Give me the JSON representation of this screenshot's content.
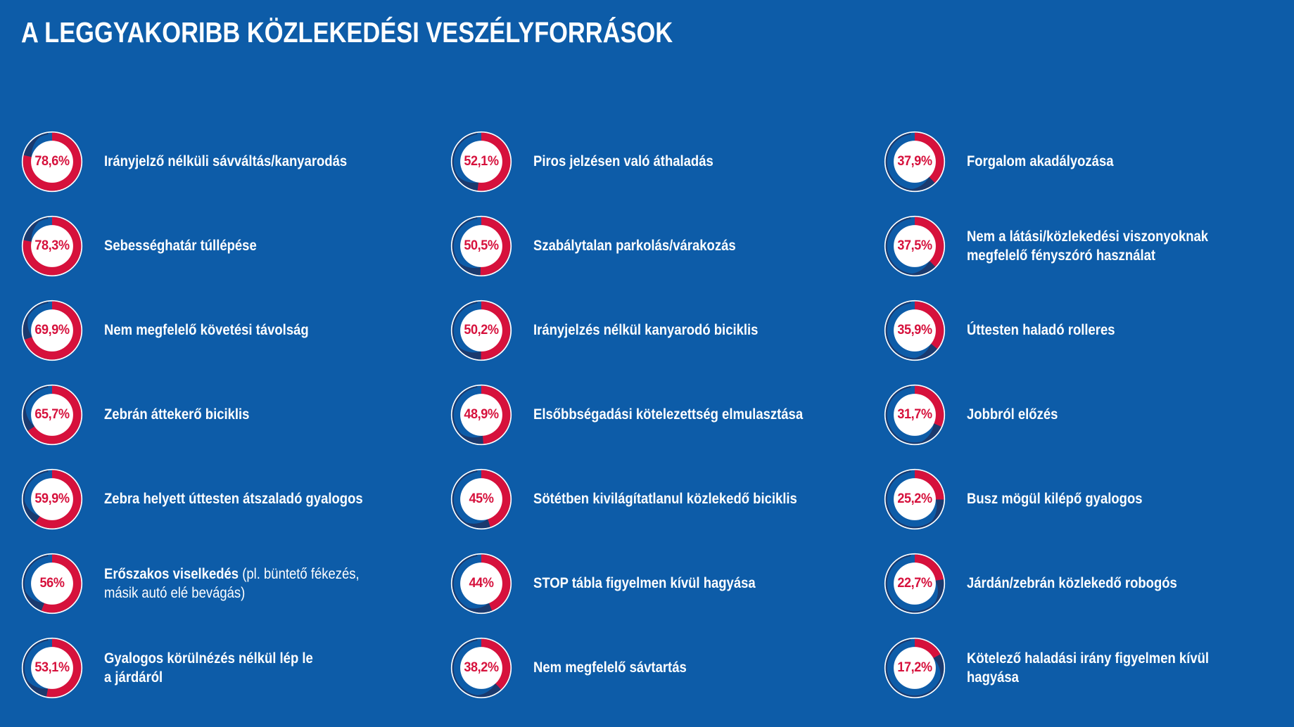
{
  "title": "A LEGGYAKORIBB KÖZLEKEDÉSI VESZÉLYFORRÁSOK",
  "colors": {
    "background": "#0d5ca8",
    "red": "#d6113c",
    "navy": "#1b3a6e",
    "white": "#ffffff"
  },
  "chart_data": {
    "type": "pie",
    "subtype": "donut-grid",
    "title": "A LEGGYAKORIBB KÖZLEKEDÉSI VESZÉLYFORRÁSOK",
    "unit": "%",
    "legend": "red arc = percentage value, arc starts at 12 o'clock clockwise",
    "columns": [
      {
        "items": [
          {
            "value": 78.6,
            "display": "78,6%",
            "label": "Irányjelző nélküli sávváltás/kanyarodás"
          },
          {
            "value": 78.3,
            "display": "78,3%",
            "label": "Sebességhatár túllépése"
          },
          {
            "value": 69.9,
            "display": "69,9%",
            "label": "Nem megfelelő követési távolság"
          },
          {
            "value": 65.7,
            "display": "65,7%",
            "label": "Zebrán áttekerő biciklis"
          },
          {
            "value": 59.9,
            "display": "59,9%",
            "label": "Zebra helyett úttesten átszaladó gyalogos"
          },
          {
            "value": 56,
            "display": "56%",
            "label": "Erőszakos viselkedés",
            "label_regular": " (pl. büntető fékezés,\nmásik autó elé bevágás)"
          },
          {
            "value": 53.1,
            "display": "53,1%",
            "label": "Gyalogos körülnézés nélkül lép le\na járdáról"
          }
        ]
      },
      {
        "items": [
          {
            "value": 52.1,
            "display": "52,1%",
            "label": "Piros jelzésen való áthaladás"
          },
          {
            "value": 50.5,
            "display": "50,5%",
            "label": "Szabálytalan parkolás/várakozás"
          },
          {
            "value": 50.2,
            "display": "50,2%",
            "label": "Irányjelzés nélkül kanyarodó biciklis"
          },
          {
            "value": 48.9,
            "display": "48,9%",
            "label": "Elsőbbségadási kötelezettség elmulasztása"
          },
          {
            "value": 45,
            "display": "45%",
            "label": "Sötétben kivilágítatlanul közlekedő biciklis"
          },
          {
            "value": 44,
            "display": "44%",
            "label": "STOP tábla figyelmen kívül hagyása"
          },
          {
            "value": 38.2,
            "display": "38,2%",
            "label": "Nem megfelelő sávtartás"
          }
        ]
      },
      {
        "items": [
          {
            "value": 37.9,
            "display": "37,9%",
            "label": "Forgalom akadályozása"
          },
          {
            "value": 37.5,
            "display": "37,5%",
            "label": "Nem a látási/közlekedési viszonyoknak\nmegfelelő fényszóró használat"
          },
          {
            "value": 35.9,
            "display": "35,9%",
            "label": "Úttesten haladó rolleres"
          },
          {
            "value": 31.7,
            "display": "31,7%",
            "label": "Jobbról előzés"
          },
          {
            "value": 25.2,
            "display": "25,2%",
            "label": "Busz mögül kilépő gyalogos"
          },
          {
            "value": 22.7,
            "display": "22,7%",
            "label": "Járdán/zebrán közlekedő robogós"
          },
          {
            "value": 17.2,
            "display": "17,2%",
            "label": "Kötelező haladási irány figyelmen kívül\nhagyása"
          }
        ]
      }
    ]
  }
}
